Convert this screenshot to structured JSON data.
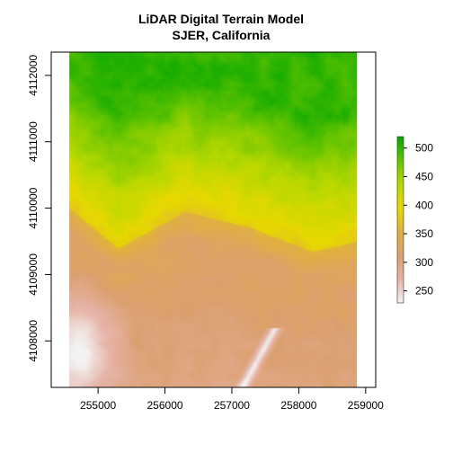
{
  "chart_data": {
    "type": "heatmap",
    "title": "LiDAR Digital Terrain Model",
    "subtitle": "SJER, California",
    "xlabel": "",
    "ylabel": "",
    "xlim": [
      254300,
      259150
    ],
    "ylim": [
      4107300,
      4112350
    ],
    "raster_extent": {
      "x": [
        254570,
        258870
      ],
      "y": [
        4107300,
        4112350
      ]
    },
    "x_ticks": [
      255000,
      256000,
      257000,
      258000,
      259000
    ],
    "y_ticks": [
      4108000,
      4109000,
      4110000,
      4111000,
      4112000
    ],
    "value_range": [
      229,
      520
    ],
    "legend": {
      "position": "right",
      "ticks": [
        250,
        300,
        350,
        400,
        450,
        500
      ],
      "min": 229,
      "max": 520
    },
    "colormap": [
      "#f2f2f2",
      "#e6b3a6",
      "#dba070",
      "#e0b040",
      "#e6d800",
      "#b8d800",
      "#64c400",
      "#00a600"
    ],
    "terrain_profile": {
      "description_points_x": [
        254570,
        255300,
        256300,
        257300,
        258200,
        258870
      ],
      "green_edge_y": [
        4110000,
        4109400,
        4109950,
        4109700,
        4109350,
        4109500
      ]
    }
  }
}
